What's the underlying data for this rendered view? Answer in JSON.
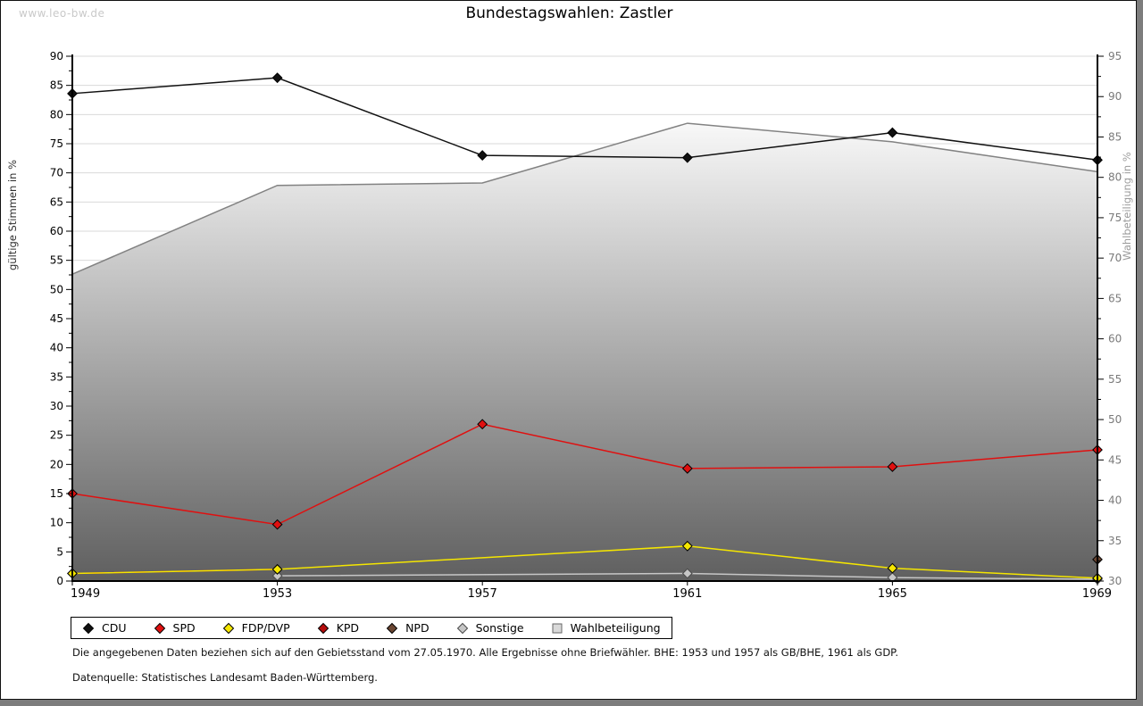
{
  "watermark": "www.leo-bw.de",
  "title": "Bundestagswahlen: Zastler",
  "footer": {
    "note": "Die angegebenen Daten beziehen sich auf den Gebietsstand vom 27.05.1970. Alle Ergebnisse ohne Briefwähler. BHE: 1953 und 1957 als GB/BHE, 1961 als GDP.",
    "source": "Datenquelle: Statistisches Landesamt Baden-Württemberg."
  },
  "chart_data": {
    "type": "line",
    "title": "Bundestagswahlen: Zastler",
    "categories": [
      "1949",
      "1953",
      "1957",
      "1961",
      "1965",
      "1969"
    ],
    "axis_left": {
      "label": "gültige Stimmen in %",
      "min": 0,
      "max": 90,
      "step": 5,
      "minor_step": 2.5
    },
    "axis_right": {
      "label": "Wahlbeteiligung in %",
      "min": 30,
      "max": 95,
      "step": 5,
      "minor_step": 2.5
    },
    "grid": true,
    "legend_position": "bottom",
    "colors": {
      "gridline": "#dadada",
      "axis": "#000000",
      "area_edge": "#828282",
      "area_gradient_top": "#f8f8f8",
      "area_gradient_bottom": "#5f5f5f",
      "right_axis_text": "#7a7a7a"
    },
    "series": [
      {
        "name": "CDU",
        "color": "#111111",
        "outline": "#000000",
        "axis": "left",
        "type": "line",
        "values": [
          83.6,
          86.3,
          73.0,
          72.6,
          76.9,
          72.2
        ]
      },
      {
        "name": "SPD",
        "color": "#e01010",
        "outline": "#000000",
        "axis": "left",
        "type": "line",
        "values": [
          15.0,
          9.7,
          26.9,
          19.3,
          19.6,
          22.5
        ]
      },
      {
        "name": "FDP/DVP",
        "color": "#f5e600",
        "outline": "#000000",
        "axis": "left",
        "type": "line",
        "values": [
          1.3,
          2.0,
          null,
          6.0,
          2.2,
          0.5
        ]
      },
      {
        "name": "KPD",
        "color": "#b50d0d",
        "outline": "#000000",
        "axis": "left",
        "type": "line",
        "values": [
          1.3,
          2.0,
          null,
          null,
          null,
          null
        ]
      },
      {
        "name": "NPD",
        "color": "#6b4632",
        "outline": "#000000",
        "axis": "left",
        "type": "line",
        "values": [
          null,
          null,
          null,
          null,
          null,
          3.7
        ]
      },
      {
        "name": "Sonstige",
        "color": "#c6c6c6",
        "outline": "#4a4a4a",
        "axis": "left",
        "type": "line",
        "values": [
          null,
          0.9,
          null,
          1.3,
          0.6,
          0.3
        ]
      },
      {
        "name": "Wahlbeteiligung",
        "color": "#d9d9d9",
        "outline": "#666666",
        "axis": "right",
        "type": "area",
        "values": [
          68.0,
          79.0,
          79.3,
          86.7,
          84.4,
          80.7
        ]
      }
    ]
  }
}
